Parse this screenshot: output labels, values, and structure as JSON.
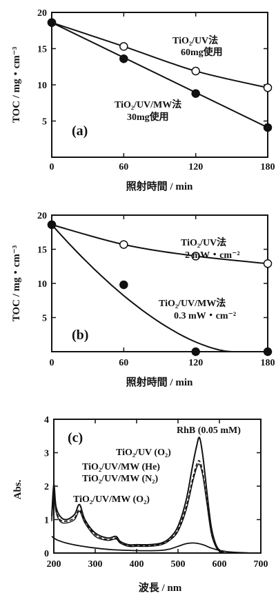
{
  "chart_data": [
    {
      "panel": "(a)",
      "type": "line",
      "xlabel": "照射時間 / min",
      "ylabel": "TOC / mg・cm⁻³",
      "xlim": [
        0,
        180
      ],
      "ylim": [
        0,
        20
      ],
      "xticks": [
        "0",
        "60",
        "120",
        "180"
      ],
      "yticks": [
        "5",
        "10",
        "15",
        "20"
      ],
      "series": [
        {
          "marker": "open",
          "label_lines": [
            "TiO₂/UV法",
            "60mg使用"
          ],
          "x": [
            0,
            60,
            120,
            180
          ],
          "y": [
            18.6,
            15.3,
            11.9,
            9.6
          ]
        },
        {
          "marker": "filled",
          "label_lines": [
            "TiO₂/UV/MW法",
            "30mg使用"
          ],
          "x": [
            0,
            60,
            120,
            180
          ],
          "y": [
            18.6,
            13.6,
            8.8,
            4.1
          ]
        }
      ]
    },
    {
      "panel": "(b)",
      "type": "line",
      "xlabel": "照射時間 / min",
      "ylabel": "TOC / mg・cm⁻³",
      "xlim": [
        0,
        180
      ],
      "ylim": [
        0,
        20
      ],
      "xticks": [
        "0",
        "60",
        "120",
        "180"
      ],
      "yticks": [
        "5",
        "10",
        "15",
        "20"
      ],
      "series": [
        {
          "marker": "open",
          "label_lines": [
            "TiO₂/UV法",
            "2 mW・cm⁻²"
          ],
          "x": [
            0,
            60,
            120,
            180
          ],
          "y": [
            18.6,
            15.7,
            14.0,
            12.9
          ]
        },
        {
          "marker": "filled",
          "label_lines": [
            "TiO₂/UV/MW法",
            "0.3 mW・cm⁻²"
          ],
          "x": [
            0,
            60,
            120,
            180
          ],
          "y": [
            18.6,
            9.8,
            0,
            0
          ]
        }
      ]
    },
    {
      "panel": "(c)",
      "type": "line",
      "xlabel": "波長 / nm",
      "ylabel": "Abs.",
      "xlim": [
        200,
        700
      ],
      "ylim": [
        0,
        4
      ],
      "xticks": [
        "200",
        "300",
        "400",
        "500",
        "600",
        "700"
      ],
      "yticks": [
        "0",
        "1",
        "2",
        "3",
        "4"
      ],
      "annotations": [
        "RhB (0.05 mM)"
      ],
      "series": [
        {
          "name": "TiO₂/UV (O₂)",
          "x": [
            195,
            200,
            205,
            215,
            230,
            250,
            262,
            275,
            300,
            330,
            350,
            360,
            380,
            400,
            430,
            460,
            480,
            500,
            520,
            535,
            545,
            552,
            560,
            570,
            580,
            590,
            600,
            610
          ],
          "y": [
            1.1,
            2.05,
            1.4,
            1.1,
            1.0,
            1.15,
            1.45,
            1.0,
            0.6,
            0.45,
            0.5,
            0.35,
            0.25,
            0.25,
            0.25,
            0.3,
            0.45,
            0.8,
            1.6,
            2.6,
            3.2,
            3.45,
            2.9,
            1.8,
            0.8,
            0.3,
            0.08,
            0.02
          ]
        },
        {
          "name": "TiO₂/UV/MW (He)",
          "x": [
            195,
            200,
            205,
            215,
            230,
            250,
            262,
            275,
            300,
            330,
            350,
            360,
            380,
            400,
            430,
            460,
            480,
            500,
            520,
            535,
            545,
            552,
            560,
            570,
            580,
            590,
            600,
            610
          ],
          "y": [
            1.0,
            1.9,
            1.3,
            1.0,
            0.95,
            1.05,
            1.3,
            0.95,
            0.55,
            0.4,
            0.45,
            0.32,
            0.22,
            0.22,
            0.22,
            0.27,
            0.4,
            0.7,
            1.4,
            2.2,
            2.65,
            2.75,
            2.4,
            1.5,
            0.65,
            0.25,
            0.06,
            0.02
          ]
        },
        {
          "name": "TiO₂/UV/MW (N₂)",
          "x": [
            195,
            200,
            205,
            215,
            230,
            250,
            262,
            275,
            300,
            330,
            350,
            360,
            380,
            400,
            430,
            460,
            480,
            500,
            520,
            535,
            545,
            552,
            560,
            570,
            580,
            590,
            600,
            610
          ],
          "y": [
            0.95,
            1.8,
            1.25,
            0.95,
            0.9,
            1.0,
            1.25,
            0.9,
            0.5,
            0.38,
            0.42,
            0.3,
            0.2,
            0.2,
            0.2,
            0.25,
            0.38,
            0.65,
            1.3,
            2.1,
            2.55,
            2.65,
            2.3,
            1.45,
            0.6,
            0.22,
            0.05,
            0.02
          ]
        },
        {
          "name": "TiO₂/UV/MW (O₂)",
          "x": [
            195,
            200,
            210,
            230,
            260,
            300,
            340,
            380,
            420,
            460,
            480,
            500,
            520,
            540,
            560,
            580,
            600,
            620,
            640,
            660,
            680,
            700
          ],
          "y": [
            0.5,
            0.45,
            0.38,
            0.3,
            0.22,
            0.15,
            0.1,
            0.08,
            0.07,
            0.08,
            0.12,
            0.2,
            0.28,
            0.3,
            0.25,
            0.15,
            0.08,
            0.04,
            0.02,
            0.01,
            0.0,
            0.0
          ]
        }
      ]
    }
  ]
}
